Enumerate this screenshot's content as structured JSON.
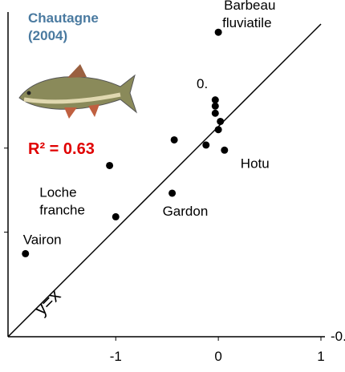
{
  "chart_data": {
    "type": "scatter",
    "title": "Chautagne (2004)",
    "annotation": "R² = 0.63",
    "line_label": "y=x",
    "clipped_labels": [
      "0.",
      "-0."
    ],
    "x": [
      0.0,
      -0.43,
      -1.06,
      -0.12,
      -0.03,
      -0.03,
      -0.03,
      0.02,
      0.0,
      0.06,
      -0.45,
      -1.0,
      -1.88
    ],
    "values": [
      0.92,
      -0.13,
      -0.38,
      -0.18,
      0.26,
      0.2,
      0.13,
      0.05,
      -0.03,
      -0.23,
      -0.65,
      -0.88,
      -1.24
    ],
    "point_labels": [
      [
        "Barbeau",
        "fluviatile"
      ],
      null,
      null,
      null,
      null,
      null,
      null,
      null,
      null,
      [
        "Hotu"
      ],
      [
        "Gardon"
      ],
      [
        "Loche",
        "franche"
      ],
      [
        "Vairon"
      ]
    ],
    "color": "#000000",
    "title_color": "#4a7aa0",
    "annotation_color": "#e00000",
    "xlim": [
      -2.05,
      1
    ],
    "ylim": [
      -2.05,
      1.13
    ],
    "xticks": [
      -1,
      0,
      1
    ],
    "yticks": [
      -1.03,
      -0.21
    ]
  }
}
